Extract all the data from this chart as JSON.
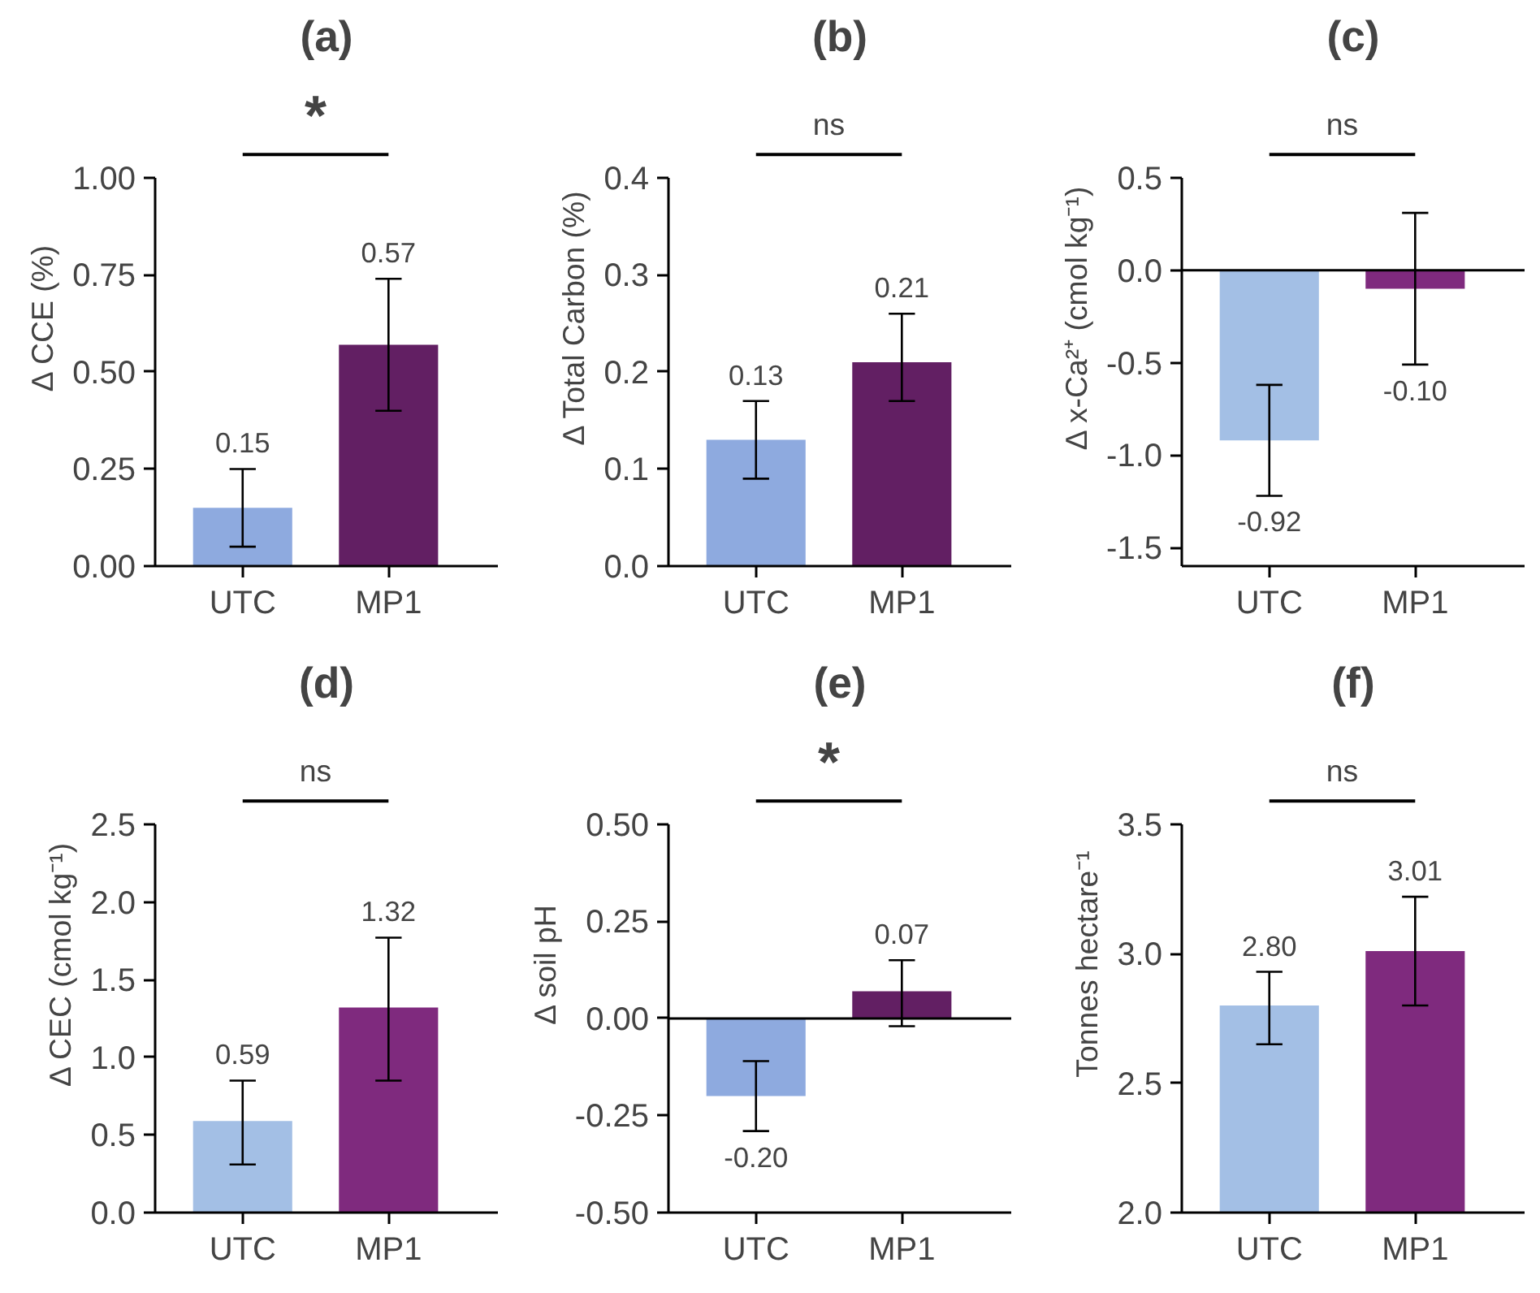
{
  "chart_data": [
    {
      "type": "bar",
      "title": "(a)",
      "ylabel": "Δ CCE (%)",
      "categories": [
        "UTC",
        "MP1"
      ],
      "values": [
        0.15,
        0.57
      ],
      "colors": [
        "#8eaadf",
        "#621f63"
      ],
      "errors": [
        [
          0.05,
          0.25
        ],
        [
          0.4,
          0.74
        ]
      ],
      "ylim": [
        0,
        1
      ],
      "yticks": [
        {
          "value": 0,
          "label": "0.00"
        },
        0.25,
        {
          "value": 0.5,
          "label": "0.50"
        },
        0.75,
        {
          "value": 1,
          "label": "1.00"
        }
      ],
      "data_labels": true,
      "annotations": [
        "*"
      ],
      "grid": false
    },
    {
      "type": "bar",
      "title": "(b)",
      "ylabel": "Δ Total Carbon (%)",
      "categories": [
        "UTC",
        "MP1"
      ],
      "values": [
        0.13,
        0.21
      ],
      "colors": [
        "#8eaadf",
        "#621f63"
      ],
      "errors": [
        [
          0.09,
          0.17
        ],
        [
          0.17,
          0.26
        ]
      ],
      "ylim": [
        0,
        0.4
      ],
      "yticks": [
        {
          "value": 0,
          "label": "0.0"
        },
        0.1,
        0.2,
        0.3,
        0.4
      ],
      "data_labels": true,
      "annotations": [
        "ns"
      ],
      "grid": false
    },
    {
      "type": "bar",
      "title": "(c)",
      "ylabel": "Δ x-Ca²⁺ (cmol kg⁻¹)",
      "categories": [
        "UTC",
        "MP1"
      ],
      "values": [
        -0.92,
        -0.1
      ],
      "colors": [
        "#a3bfe5",
        "#7f2a7e"
      ],
      "errors": [
        [
          -1.22,
          -0.62
        ],
        [
          -0.51,
          0.31
        ]
      ],
      "ylim": [
        -1.6,
        0.5
      ],
      "yticks": [
        -1.5,
        {
          "value": -1,
          "label": "-1.0"
        },
        -0.5,
        {
          "value": 0,
          "label": "0.0"
        },
        0.5
      ],
      "value_labels": [
        "-0.92",
        "-0.10"
      ],
      "ref_lines": [
        {
          "axis": "y",
          "value": 0,
          "label": null
        }
      ],
      "annotations": [
        "ns"
      ],
      "grid": false
    },
    {
      "type": "bar",
      "title": "(d)",
      "ylabel": "Δ CEC (cmol kg⁻¹)",
      "categories": [
        "UTC",
        "MP1"
      ],
      "values": [
        0.59,
        1.32
      ],
      "colors": [
        "#a3bfe5",
        "#7f2a7e"
      ],
      "errors": [
        [
          0.31,
          0.85
        ],
        [
          0.85,
          1.77
        ]
      ],
      "ylim": [
        0,
        2.5
      ],
      "yticks": [
        {
          "value": 0,
          "label": "0.0"
        },
        0.5,
        {
          "value": 1,
          "label": "1.0"
        },
        1.5,
        {
          "value": 2,
          "label": "2.0"
        },
        2.5
      ],
      "data_labels": true,
      "annotations": [
        "ns"
      ],
      "grid": false
    },
    {
      "type": "bar",
      "title": "(e)",
      "ylabel": "Δ soil pH",
      "categories": [
        "UTC",
        "MP1"
      ],
      "values": [
        -0.2,
        0.07
      ],
      "colors": [
        "#8eaadf",
        "#621f63"
      ],
      "errors": [
        [
          -0.29,
          -0.11
        ],
        [
          -0.02,
          0.15
        ]
      ],
      "ylim": [
        -0.5,
        0.5
      ],
      "yticks": [
        {
          "value": -0.5,
          "label": "-0.50"
        },
        -0.25,
        {
          "value": 0,
          "label": "0.00"
        },
        0.25,
        {
          "value": 0.5,
          "label": "0.50"
        }
      ],
      "value_labels": [
        "-0.20",
        "0.07"
      ],
      "ref_lines": [
        {
          "axis": "y",
          "value": 0,
          "label": null
        }
      ],
      "annotations": [
        "*"
      ],
      "grid": false
    },
    {
      "type": "bar",
      "title": "(f)",
      "ylabel": "Tonnes hectare⁻¹",
      "categories": [
        "UTC",
        "MP1"
      ],
      "values": [
        2.8,
        3.01
      ],
      "colors": [
        "#a3bfe5",
        "#7f2a7e"
      ],
      "errors": [
        [
          2.65,
          2.93
        ],
        [
          2.8,
          3.22
        ]
      ],
      "ylim": [
        2,
        3.5
      ],
      "yticks": [
        {
          "value": 2,
          "label": "2.0"
        },
        2.5,
        {
          "value": 3,
          "label": "3.0"
        },
        3.5
      ],
      "value_labels": [
        "2.80",
        "3.01"
      ],
      "annotations": [
        "ns"
      ],
      "grid": false
    }
  ]
}
